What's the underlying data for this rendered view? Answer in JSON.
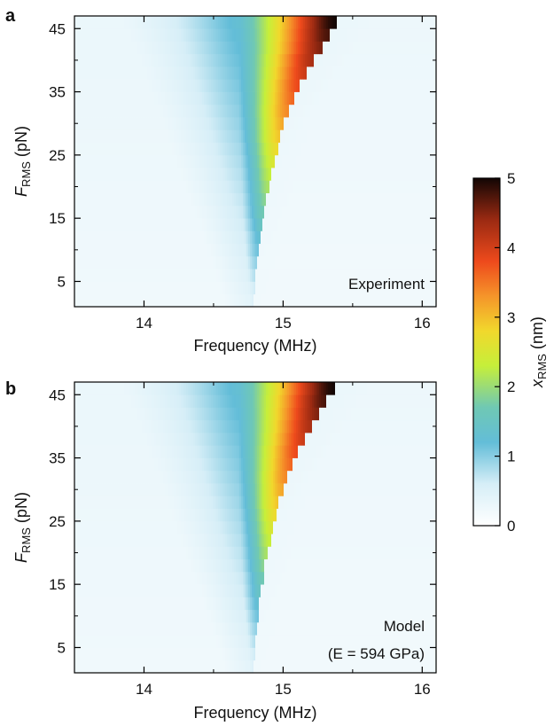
{
  "chart_data": [
    {
      "panel_label": "a",
      "type": "heatmap",
      "annotation_lines": [
        "Experiment"
      ],
      "xlabel": "Frequency (MHz)",
      "ylabel": {
        "main": "F",
        "subscript": "RMS",
        "unit": "(pN)"
      },
      "xlim": [
        13.5,
        16.1
      ],
      "ylim": [
        1,
        47
      ],
      "xticks": [
        14,
        15,
        16
      ],
      "yticks": [
        5,
        15,
        25,
        35,
        45
      ],
      "resonance": {
        "center_low_force_mhz": 14.79,
        "linewidth_mhz": 0.05,
        "stiffening_mhz_per_pn2": 0.00028,
        "peak_amplitude_nm": [
          0.5,
          5.0
        ]
      },
      "force_levels_pn": [
        2,
        4,
        6,
        8,
        10,
        12,
        14,
        16,
        18,
        20,
        22,
        24,
        26,
        28,
        30,
        32,
        34,
        36,
        38,
        40,
        42,
        44,
        46
      ],
      "jump_frequencies_mhz": [
        14.79,
        14.8,
        14.8,
        14.81,
        14.82,
        14.84,
        14.85,
        14.86,
        14.88,
        14.9,
        14.92,
        14.94,
        14.96,
        14.98,
        15.01,
        15.04,
        15.08,
        15.12,
        15.17,
        15.22,
        15.28,
        15.33,
        15.38
      ]
    },
    {
      "panel_label": "b",
      "type": "heatmap",
      "annotation_lines": [
        "Model",
        "(E = 594 GPa)"
      ],
      "xlabel": "Frequency (MHz)",
      "ylabel": {
        "main": "F",
        "subscript": "RMS",
        "unit": "(pN)"
      },
      "xlim": [
        13.5,
        16.1
      ],
      "ylim": [
        1,
        47
      ],
      "xticks": [
        14,
        15,
        16
      ],
      "yticks": [
        5,
        15,
        25,
        35,
        45
      ],
      "resonance": {
        "center_low_force_mhz": 14.79,
        "linewidth_mhz": 0.05,
        "stiffening_mhz_per_pn2": 0.00028,
        "peak_amplitude_nm": [
          0.5,
          5.0
        ]
      },
      "force_levels_pn": [
        2,
        4,
        6,
        8,
        10,
        12,
        14,
        16,
        18,
        20,
        22,
        24,
        26,
        28,
        30,
        32,
        34,
        36,
        38,
        40,
        42,
        44,
        46
      ],
      "jump_frequencies_mhz": [
        14.79,
        14.8,
        14.8,
        14.81,
        14.82,
        14.83,
        14.84,
        14.86,
        14.87,
        14.89,
        14.91,
        14.93,
        14.95,
        14.97,
        15.0,
        15.03,
        15.07,
        15.11,
        15.16,
        15.21,
        15.26,
        15.31,
        15.37
      ]
    }
  ],
  "colorbar": {
    "label_main": "x",
    "label_subscript": "RMS",
    "label_unit": "(nm)",
    "min": 0,
    "max": 5,
    "ticks": [
      0,
      1,
      2,
      3,
      4,
      5
    ],
    "colormap": [
      {
        "value": 0.0,
        "color": "#ffffff"
      },
      {
        "value": 0.6,
        "color": "#d6eef7"
      },
      {
        "value": 1.2,
        "color": "#63bdd8"
      },
      {
        "value": 1.7,
        "color": "#6fc8b4"
      },
      {
        "value": 2.3,
        "color": "#c6ef3a"
      },
      {
        "value": 2.8,
        "color": "#f1d82c"
      },
      {
        "value": 3.3,
        "color": "#f5952a"
      },
      {
        "value": 3.8,
        "color": "#ee4a1c"
      },
      {
        "value": 4.4,
        "color": "#9b2a12"
      },
      {
        "value": 5.0,
        "color": "#120604"
      }
    ]
  }
}
